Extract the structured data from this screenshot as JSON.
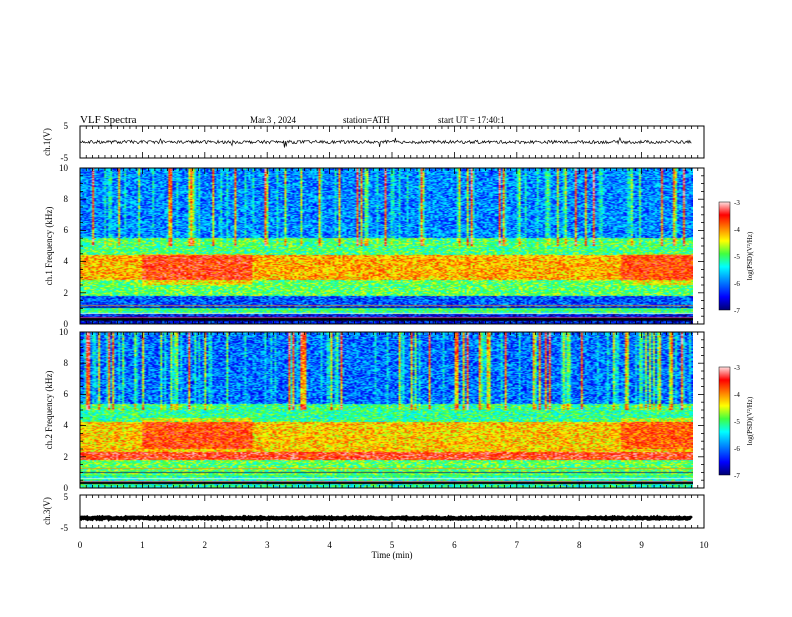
{
  "header": {
    "title": "VLF Spectra",
    "date": "Mar.3 , 2024",
    "station": "station=ATH",
    "start": "start UT = 17:40:1"
  },
  "colors": {
    "spectrogram_palette": [
      "#000070",
      "#0000ff",
      "#0090ff",
      "#00ffff",
      "#40ff40",
      "#ffff00",
      "#ff8000",
      "#ff0000",
      "#ffc0c0"
    ]
  },
  "chart_data": [
    {
      "type": "line",
      "panel": "ch1",
      "ylabel": "ch.1(V)",
      "ylim": [
        -5,
        5
      ],
      "y_ticks": [
        "5",
        "-5"
      ],
      "x": [
        0,
        9.8
      ],
      "baseline": 0,
      "amplitude": 0.5
    },
    {
      "type": "heatmap",
      "panel": "ch1-spectrogram",
      "ylabel": "ch.1 Frequency (kHz)",
      "ylim": [
        0,
        10
      ],
      "y_ticks": [
        "0",
        "2",
        "4",
        "6",
        "8",
        "10"
      ],
      "x": [
        0,
        9.8
      ],
      "colorbar": {
        "label": "log(PSD)(V²/Hz)",
        "range": [
          -7,
          -3
        ],
        "ticks": [
          "-3",
          "-4",
          "-5",
          "-6",
          "-7"
        ]
      },
      "bands_khz": [
        {
          "from": 0,
          "to": 0.6,
          "log_psd": -6.5
        },
        {
          "from": 0.6,
          "to": 1.0,
          "log_psd": -5.2
        },
        {
          "from": 1.0,
          "to": 1.8,
          "log_psd": -6.2
        },
        {
          "from": 1.8,
          "to": 2.8,
          "log_psd": -5.0
        },
        {
          "from": 2.8,
          "to": 4.4,
          "log_psd": -4.2
        },
        {
          "from": 4.4,
          "to": 5.5,
          "log_psd": -5.1
        },
        {
          "from": 5.5,
          "to": 10,
          "log_psd": -6.0
        }
      ]
    },
    {
      "type": "heatmap",
      "panel": "ch2-spectrogram",
      "ylabel": "ch.2 Frequency (kHz)",
      "ylim": [
        0,
        10
      ],
      "y_ticks": [
        "0",
        "2",
        "4",
        "6",
        "8",
        "10"
      ],
      "x": [
        0,
        9.8
      ],
      "colorbar": {
        "label": "log(PSD)(V²/Hz)",
        "range": [
          -7,
          -3
        ],
        "ticks": [
          "-3",
          "-4",
          "-5",
          "-6",
          "-7"
        ]
      },
      "bands_khz": [
        {
          "from": 0,
          "to": 0.8,
          "log_psd": -5.3
        },
        {
          "from": 0.8,
          "to": 1.8,
          "log_psd": -5.0
        },
        {
          "from": 1.8,
          "to": 2.3,
          "log_psd": -3.5
        },
        {
          "from": 2.3,
          "to": 4.2,
          "log_psd": -4.3
        },
        {
          "from": 4.2,
          "to": 5.4,
          "log_psd": -5.2
        },
        {
          "from": 5.4,
          "to": 10,
          "log_psd": -6.1
        }
      ]
    },
    {
      "type": "line",
      "panel": "ch3",
      "ylabel": "ch.3(V)",
      "ylim": [
        -5,
        5
      ],
      "y_ticks": [
        "5",
        "-5"
      ],
      "x": [
        0,
        9.8
      ],
      "baseline": -2,
      "amplitude": 0.2
    }
  ],
  "x_axis": {
    "label": "Time (min)",
    "range": [
      0,
      10
    ],
    "ticks": [
      "0",
      "1",
      "2",
      "3",
      "4",
      "5",
      "6",
      "7",
      "8",
      "9",
      "10"
    ]
  }
}
